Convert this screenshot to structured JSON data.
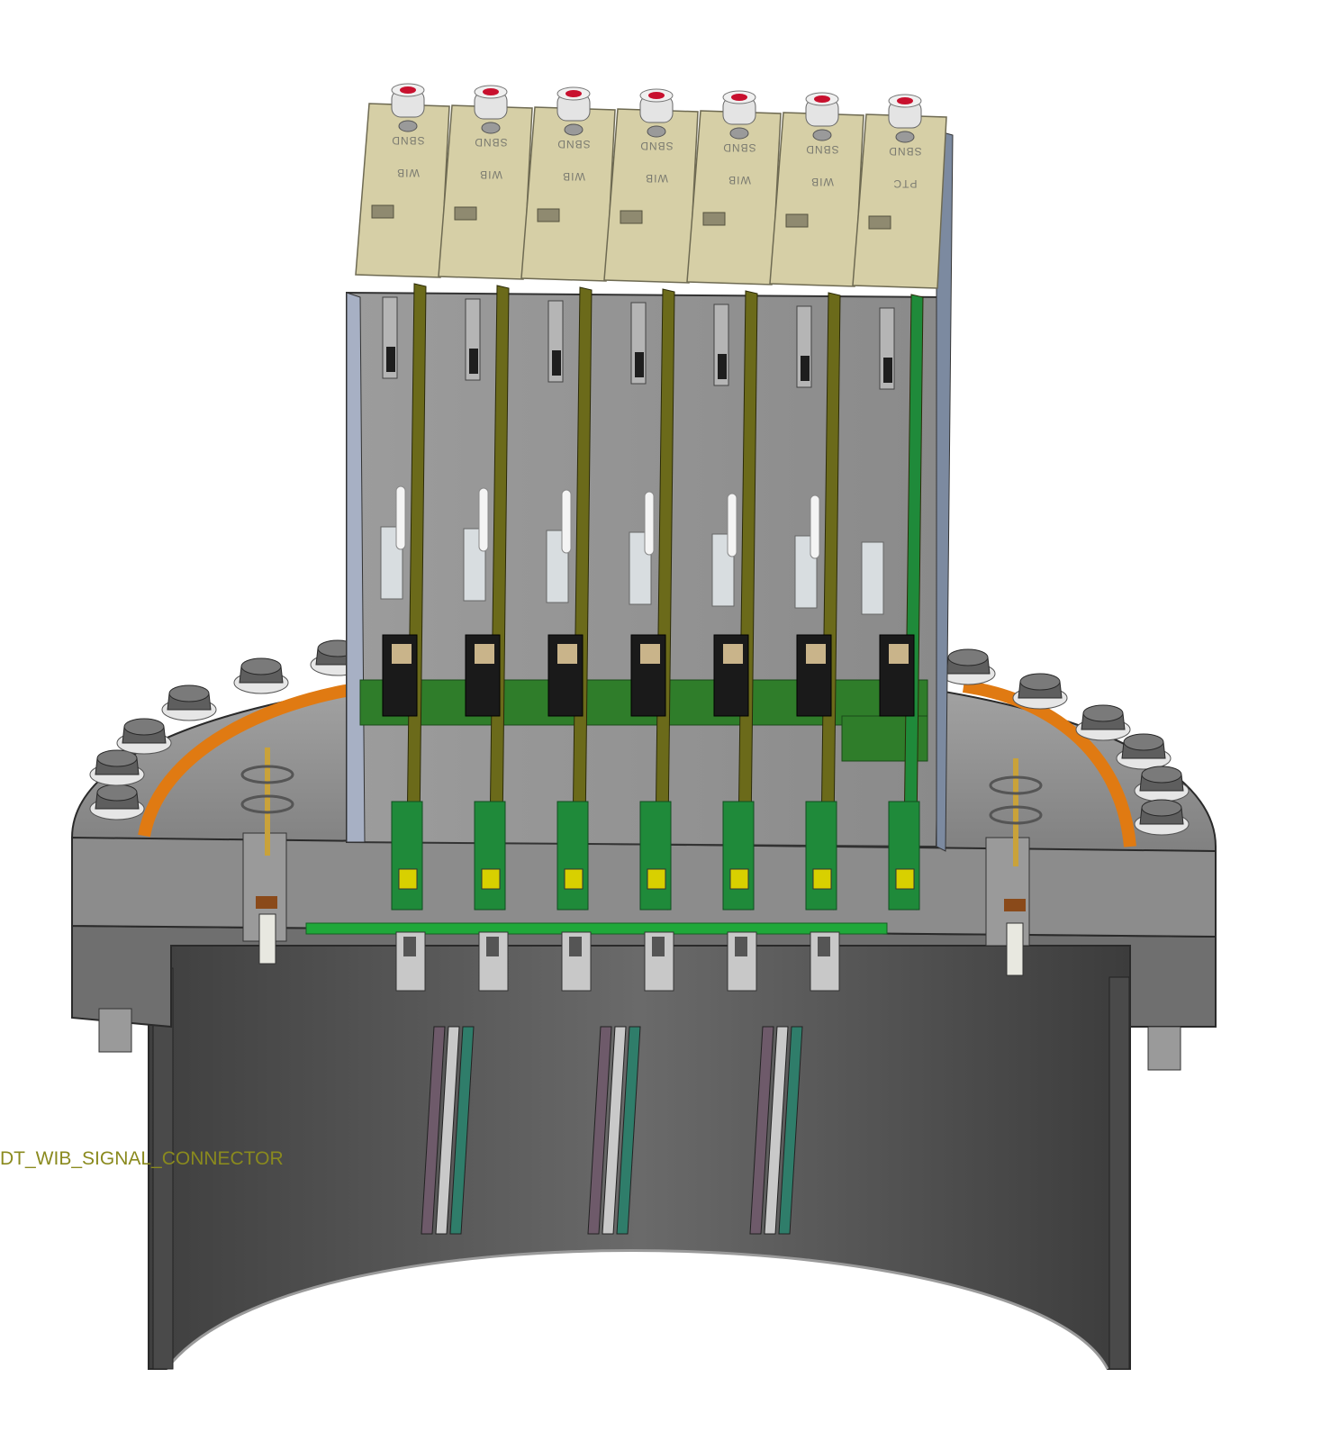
{
  "callout": {
    "label": "DT_WIB_SIGNAL_CONNECTOR"
  },
  "crate": {
    "modules": [
      {
        "line1": "SBND",
        "line2": "WIB"
      },
      {
        "line1": "SBND",
        "line2": "WIB"
      },
      {
        "line1": "SBND",
        "line2": "WIB"
      },
      {
        "line1": "SBND",
        "line2": "WIB"
      },
      {
        "line1": "SBND",
        "line2": "WIB"
      },
      {
        "line1": "SBND",
        "line2": "WIB"
      },
      {
        "line1": "SBND",
        "line2": "PTC"
      }
    ]
  },
  "colors": {
    "faceplate": "#d6cfa6",
    "pcb": "#6b6a1a",
    "pcb_green": "#1f8a3a",
    "flange": "#8c8c8c",
    "body": "#5a5a5a",
    "gasket": "#e07a12",
    "button": "#c8102e",
    "callout_text": "#8a8a1e"
  }
}
